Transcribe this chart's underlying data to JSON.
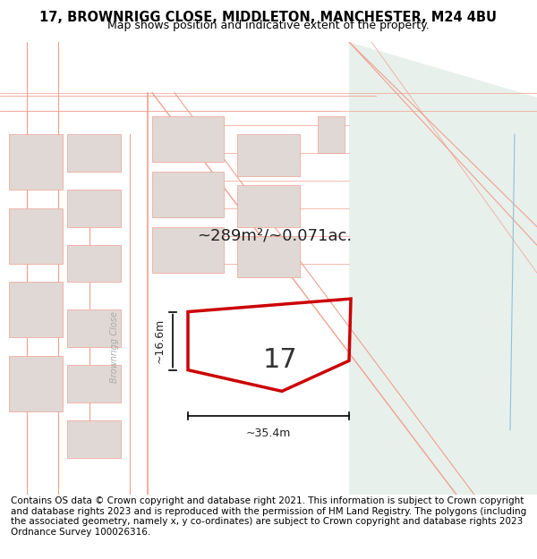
{
  "title_line1": "17, BROWNRIGG CLOSE, MIDDLETON, MANCHESTER, M24 4BU",
  "title_line2": "Map shows position and indicative extent of the property.",
  "footer": "Contains OS data © Crown copyright and database right 2021. This information is subject to Crown copyright and database rights 2023 and is reproduced with the permission of HM Land Registry. The polygons (including the associated geometry, namely x, y co-ordinates) are subject to Crown copyright and database rights 2023 Ordnance Survey 100026316.",
  "bg_color": "#f9f3f0",
  "map_bg": "#f5ede8",
  "green_area_color": "#e8f0eb",
  "road_color": "#f0a090",
  "building_color": "#e0d8d4",
  "property_polygon_color": "#cc0000",
  "property_fill_color": "#f5ede8",
  "area_text": "~289m²/~0.071ac.",
  "number_text": "17",
  "width_text": "~35.4m",
  "height_text": "~16.6m",
  "footer_fontsize": 7.5,
  "title_fontsize": 10.5,
  "subtitle_fontsize": 9
}
